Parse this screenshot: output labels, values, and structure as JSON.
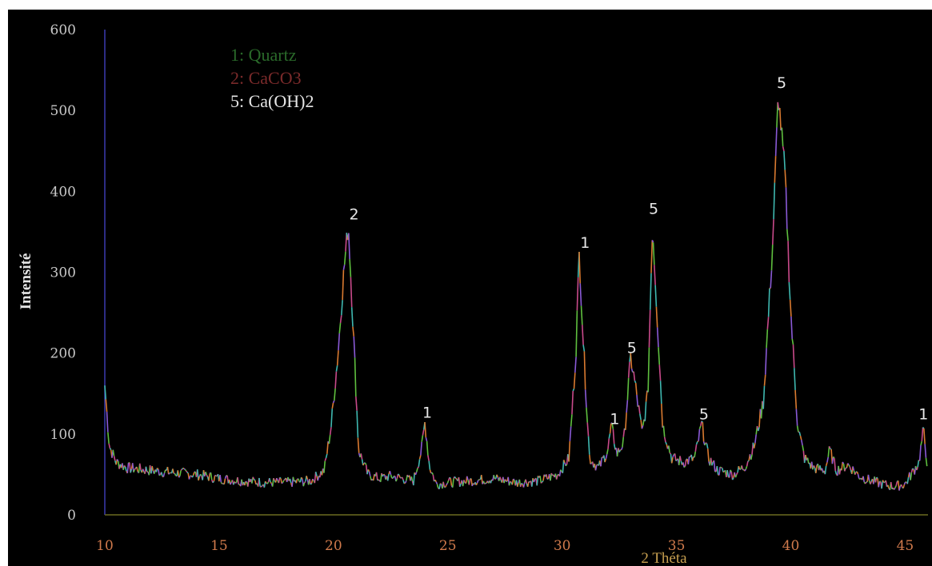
{
  "chart_data": {
    "type": "line",
    "xlabel": "2 Théta",
    "ylabel": "Intensité",
    "xlim": [
      10,
      46
    ],
    "ylim": [
      0,
      600
    ],
    "x_ticks": [
      10,
      15,
      20,
      25,
      30,
      35,
      40,
      45
    ],
    "x_tick_labels": [
      "10",
      "15",
      "20",
      "25",
      "30",
      "35",
      "40",
      "45"
    ],
    "y_ticks": [
      0,
      100,
      200,
      300,
      400,
      500,
      600
    ],
    "y_tick_labels": [
      "0",
      "100",
      "200",
      "300",
      "400",
      "500",
      "600"
    ],
    "grid": false,
    "legend": {
      "placement": "top-left",
      "entries": [
        {
          "text": "1: Quartz",
          "color": "#2a6a2a"
        },
        {
          "text": "2: CaCO3",
          "color": "#7a2a2a"
        },
        {
          "text": "5: Ca(OH)2",
          "color": "#e6e6e6"
        }
      ]
    },
    "line_colors": [
      "#3fb8b0",
      "#d97a30",
      "#8a5ad6",
      "#5fbf3f",
      "#c84a8a"
    ],
    "baseline": [
      [
        10,
        160
      ],
      [
        10.2,
        85
      ],
      [
        10.5,
        65
      ],
      [
        11,
        58
      ],
      [
        12,
        55
      ],
      [
        13,
        52
      ],
      [
        14,
        50
      ],
      [
        15,
        45
      ],
      [
        16,
        42
      ],
      [
        17,
        40
      ],
      [
        18,
        40
      ],
      [
        19,
        42
      ],
      [
        19.6,
        55
      ],
      [
        19.9,
        110
      ],
      [
        20.2,
        200
      ],
      [
        20.45,
        300
      ],
      [
        20.65,
        360
      ],
      [
        20.85,
        240
      ],
      [
        21.1,
        80
      ],
      [
        21.5,
        50
      ],
      [
        22,
        45
      ],
      [
        22.5,
        48
      ],
      [
        23,
        45
      ],
      [
        23.5,
        42
      ],
      [
        23.85,
        80
      ],
      [
        24.0,
        115
      ],
      [
        24.2,
        60
      ],
      [
        24.5,
        38
      ],
      [
        25,
        40
      ],
      [
        26,
        42
      ],
      [
        27,
        45
      ],
      [
        28,
        40
      ],
      [
        29,
        42
      ],
      [
        29.8,
        50
      ],
      [
        30.3,
        70
      ],
      [
        30.6,
        200
      ],
      [
        30.75,
        325
      ],
      [
        30.95,
        200
      ],
      [
        31.2,
        70
      ],
      [
        31.6,
        58
      ],
      [
        32,
        80
      ],
      [
        32.15,
        110
      ],
      [
        32.4,
        75
      ],
      [
        32.7,
        90
      ],
      [
        33.0,
        195
      ],
      [
        33.2,
        160
      ],
      [
        33.5,
        100
      ],
      [
        33.75,
        150
      ],
      [
        33.95,
        360
      ],
      [
        34.15,
        250
      ],
      [
        34.4,
        110
      ],
      [
        34.8,
        70
      ],
      [
        35.3,
        65
      ],
      [
        35.8,
        70
      ],
      [
        36.1,
        112
      ],
      [
        36.4,
        70
      ],
      [
        36.8,
        55
      ],
      [
        37.5,
        50
      ],
      [
        38.0,
        60
      ],
      [
        38.4,
        85
      ],
      [
        38.8,
        140
      ],
      [
        39.2,
        330
      ],
      [
        39.45,
        520
      ],
      [
        39.75,
        420
      ],
      [
        40.0,
        250
      ],
      [
        40.3,
        110
      ],
      [
        40.6,
        70
      ],
      [
        41,
        58
      ],
      [
        41.5,
        55
      ],
      [
        41.7,
        80
      ],
      [
        42,
        55
      ],
      [
        42.5,
        62
      ],
      [
        43,
        48
      ],
      [
        43.5,
        42
      ],
      [
        44,
        38
      ],
      [
        44.5,
        35
      ],
      [
        45,
        38
      ],
      [
        45.6,
        65
      ],
      [
        45.8,
        105
      ],
      [
        46,
        55
      ]
    ],
    "annotations": [
      {
        "text": "2",
        "x": 20.9,
        "y": 365
      },
      {
        "text": "1",
        "x": 24.1,
        "y": 120
      },
      {
        "text": "1",
        "x": 31.0,
        "y": 330
      },
      {
        "text": "1",
        "x": 32.3,
        "y": 112
      },
      {
        "text": "5",
        "x": 33.05,
        "y": 200
      },
      {
        "text": "5",
        "x": 34.0,
        "y": 372
      },
      {
        "text": "5",
        "x": 36.2,
        "y": 118
      },
      {
        "text": "5",
        "x": 39.6,
        "y": 528
      },
      {
        "text": "1",
        "x": 45.8,
        "y": 118
      }
    ]
  }
}
